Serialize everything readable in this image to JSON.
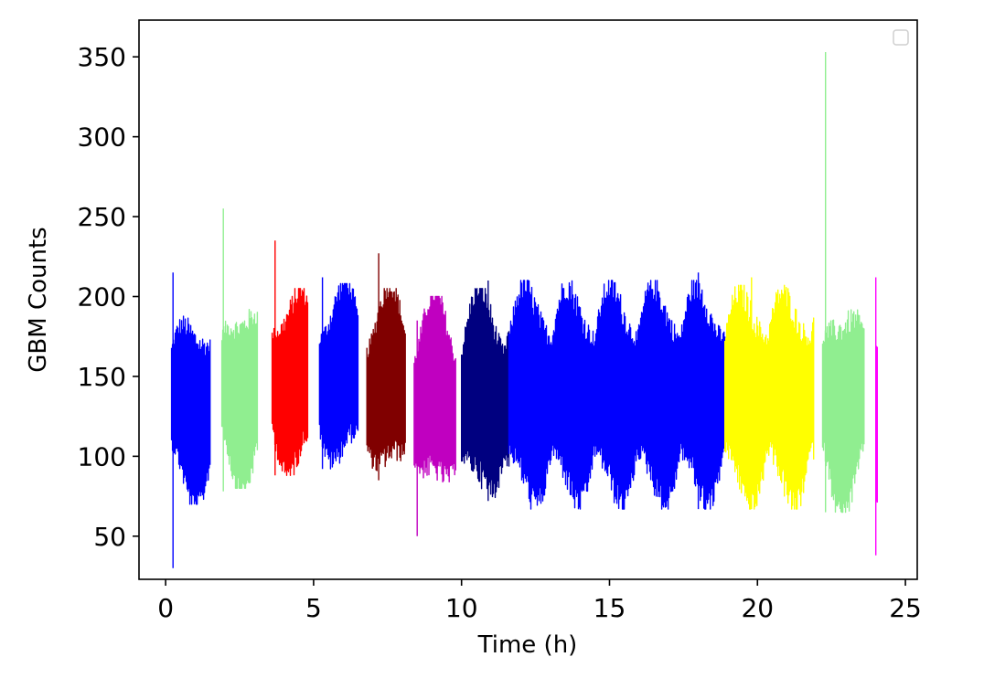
{
  "chart_data": {
    "type": "line",
    "title": "",
    "xlabel": "Time (h)",
    "ylabel": "GBM Counts",
    "xlim": [
      -0.9,
      25.4
    ],
    "ylim": [
      23,
      373
    ],
    "xticks": [
      0,
      5,
      10,
      15,
      20,
      25
    ],
    "yticks": [
      50,
      100,
      150,
      200,
      250,
      300,
      350
    ],
    "legend": {
      "position": "top-right",
      "entries": []
    },
    "grid": false,
    "segments": [
      {
        "color": "#0000ff",
        "x_start": 0.2,
        "x_end": 1.5,
        "low": 70,
        "high": 190,
        "spike_time": 0.25,
        "spike_high": 215,
        "spike_low": 30
      },
      {
        "color": "#90ee90",
        "x_start": 1.9,
        "x_end": 3.1,
        "low": 80,
        "high": 198,
        "spike_time": 1.95,
        "spike_high": 255,
        "spike_low": 78
      },
      {
        "color": "#ff0000",
        "x_start": 3.6,
        "x_end": 4.8,
        "low": 88,
        "high": 205,
        "spike_time": 3.7,
        "spike_high": 235,
        "spike_low": 88
      },
      {
        "color": "#0000ff",
        "x_start": 5.2,
        "x_end": 6.5,
        "low": 92,
        "high": 208,
        "spike_time": 5.3,
        "spike_high": 212,
        "spike_low": 92
      },
      {
        "color": "#800000",
        "x_start": 6.8,
        "x_end": 8.1,
        "low": 85,
        "high": 205,
        "spike_time": 7.2,
        "spike_high": 227,
        "spike_low": 85
      },
      {
        "color": "#c000c0",
        "x_start": 8.4,
        "x_end": 9.8,
        "low": 75,
        "high": 200,
        "spike_time": 8.5,
        "spike_high": 185,
        "spike_low": 50
      },
      {
        "color": "#000080",
        "x_start": 10.0,
        "x_end": 11.6,
        "low": 72,
        "high": 205,
        "spike_time": 10.9,
        "spike_high": 210,
        "spike_low": 72
      },
      {
        "color": "#0000ff",
        "x_start": 11.6,
        "x_end": 18.9,
        "low": 67,
        "high": 210,
        "spike_time": 18.0,
        "spike_high": 215,
        "spike_low": 67
      },
      {
        "color": "#ffff00",
        "x_start": 18.9,
        "x_end": 21.9,
        "low": 67,
        "high": 207,
        "spike_time": 19.8,
        "spike_high": 212,
        "spike_low": 67
      },
      {
        "color": "#90ee90",
        "x_start": 22.2,
        "x_end": 23.6,
        "low": 65,
        "high": 198,
        "spike_time": 22.3,
        "spike_high": 353,
        "spike_low": 65
      },
      {
        "color": "#ff00ff",
        "x_start": 24.0,
        "x_end": 24.05,
        "low": 38,
        "high": 212,
        "spike_time": 24.0,
        "spike_high": 212,
        "spike_low": 38
      }
    ]
  }
}
